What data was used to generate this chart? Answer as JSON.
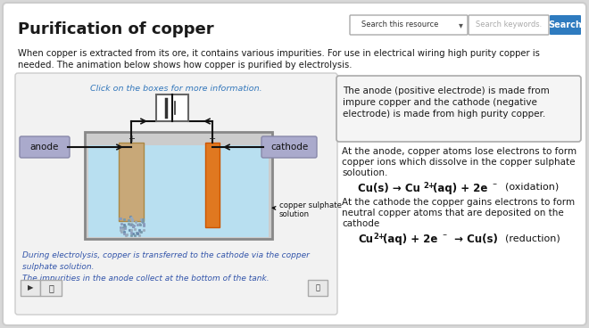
{
  "title": "Purification of copper",
  "bg_color": "#d8d8d8",
  "panel_bg": "#ffffff",
  "search_placeholder": "Search this resource",
  "search_arrow": "▾",
  "search_keywords": "Search keywords.",
  "search_btn": "Search",
  "search_btn_color": "#2e7bbf",
  "header_line1": "When copper is extracted from its ore, it contains various impurities. For use in electrical wiring high purity copper is",
  "header_line2": "needed. The animation below shows how copper is purified by electrolysis.",
  "diagram_title": "Click on the boxes for more information.",
  "diagram_title_color": "#3377bb",
  "anode_label": "anode",
  "cathode_label": "cathode",
  "electrode_box_color": "#aaaacc",
  "electrode_box_border": "#8888aa",
  "tank_fill_color": "#b8dff0",
  "tank_border_color": "#777777",
  "anode_electrode_color": "#c8a878",
  "cathode_electrode_color": "#e07820",
  "impurity_color": "#8899aa",
  "wire_color": "#111111",
  "solution_label": "copper sulphate\nsolution",
  "caption_color": "#3355aa",
  "caption1": "During electrolysis, copper is transferred to the cathode via the copper",
  "caption2": "sulphate solution.",
  "caption3": "The impurities in the anode collect at the bottom of the tank.",
  "info_box_bg": "#f5f5f5",
  "info_box_border": "#aaaaaa",
  "info_box_line1": "The anode (positive electrode) is made from",
  "info_box_line2": "impure copper and the cathode (negative",
  "info_box_line3": "electrode) is made from high purity copper.",
  "right_text1_line1": "At the anode, copper atoms lose electrons to form",
  "right_text1_line2": "copper ions which dissolve in the copper sulphate",
  "right_text1_line3": "soloution.",
  "right_text2_line1": "At the cathode the copper gains electrons to form",
  "right_text2_line2": "neutral copper atoms that are deposited on the",
  "right_text2_line3": "cathode",
  "eq1_oxidation": "(oxidation)",
  "eq2_reduction": "(reduction)"
}
